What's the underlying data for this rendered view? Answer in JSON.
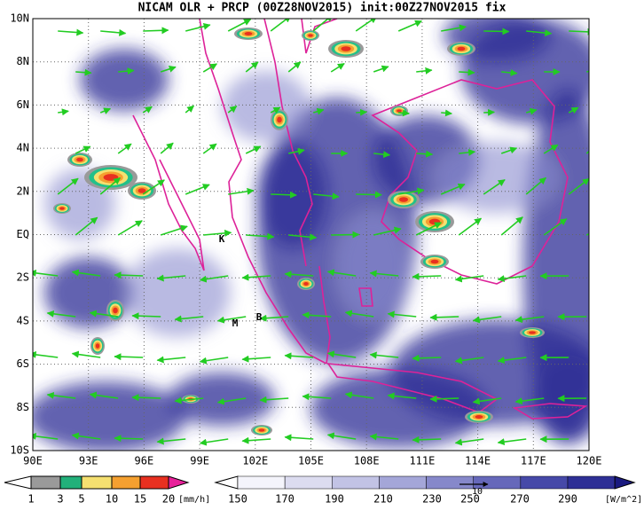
{
  "header": {
    "title": "NICAM OLR + PRCP (00Z28NOV2015) init:00Z27NOV2015 fix"
  },
  "map": {
    "x_labels": [
      "90E",
      "93E",
      "96E",
      "99E",
      "102E",
      "105E",
      "108E",
      "111E",
      "114E",
      "117E",
      "120E"
    ],
    "y_labels": [
      "10N",
      "8N",
      "6N",
      "4N",
      "2N",
      "EQ",
      "2S",
      "4S",
      "6S",
      "8S",
      "10S"
    ],
    "stations": [
      {
        "label": "K"
      },
      {
        "label": "M"
      },
      {
        "label": "B"
      }
    ],
    "vector_scale": "10"
  },
  "legend": {
    "precip": {
      "labels": [
        1,
        3,
        5,
        10,
        15,
        20
      ],
      "unit": "[mm/h]"
    },
    "olr": {
      "labels": [
        150,
        170,
        190,
        210,
        230,
        250,
        270,
        290
      ],
      "unit": "[W/m^2]"
    }
  }
}
